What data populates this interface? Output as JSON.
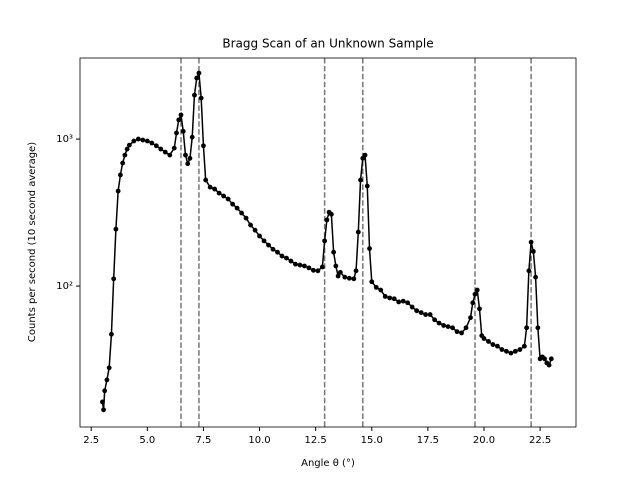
{
  "chart_data": {
    "type": "line",
    "title": "Bragg Scan of an Unknown Sample",
    "xlabel": "Angle θ (°)",
    "ylabel": "Counts per second (10 second average)",
    "yscale": "log",
    "xlim": [
      2,
      24.1
    ],
    "ylim": [
      11,
      3560
    ],
    "xticks": [
      {
        "value": 2.5,
        "label": "2.5"
      },
      {
        "value": 5,
        "label": "5.0"
      },
      {
        "value": 7.5,
        "label": "7.5"
      },
      {
        "value": 10,
        "label": "10.0"
      },
      {
        "value": 12.5,
        "label": "12.5"
      },
      {
        "value": 15,
        "label": "15.0"
      },
      {
        "value": 17.5,
        "label": "17.5"
      },
      {
        "value": 20,
        "label": "20.0"
      },
      {
        "value": 22.5,
        "label": "22.5"
      }
    ],
    "yticks": [
      {
        "value": 100,
        "label": "10²"
      },
      {
        "value": 1000,
        "label": "10³"
      }
    ],
    "vlines": [
      6.5,
      7.3,
      12.9,
      14.6,
      19.6,
      22.1
    ],
    "vline_color": "#777777",
    "series": [
      {
        "color": "#000000",
        "x": [
          3.0,
          3.05,
          3.1,
          3.2,
          3.3,
          3.4,
          3.5,
          3.6,
          3.7,
          3.8,
          3.9,
          4.0,
          4.1,
          4.2,
          4.4,
          4.6,
          4.8,
          5.0,
          5.2,
          5.4,
          5.6,
          5.8,
          6.0,
          6.2,
          6.3,
          6.4,
          6.5,
          6.6,
          6.7,
          6.8,
          6.9,
          7.0,
          7.1,
          7.2,
          7.3,
          7.4,
          7.5,
          7.6,
          7.8,
          8.0,
          8.2,
          8.4,
          8.6,
          8.8,
          9.0,
          9.2,
          9.4,
          9.6,
          9.8,
          10.0,
          10.2,
          10.4,
          10.6,
          10.8,
          11.0,
          11.2,
          11.4,
          11.6,
          11.8,
          12.0,
          12.2,
          12.4,
          12.6,
          12.8,
          12.9,
          13.0,
          13.1,
          13.2,
          13.3,
          13.4,
          13.5,
          13.6,
          13.8,
          14.0,
          14.2,
          14.3,
          14.4,
          14.5,
          14.6,
          14.7,
          14.8,
          14.9,
          15.0,
          15.2,
          15.4,
          15.6,
          15.8,
          16.0,
          16.2,
          16.4,
          16.6,
          16.8,
          17.0,
          17.2,
          17.4,
          17.6,
          17.8,
          18.0,
          18.2,
          18.4,
          18.6,
          18.8,
          19.0,
          19.2,
          19.4,
          19.5,
          19.6,
          19.7,
          19.8,
          19.9,
          20.0,
          20.2,
          20.4,
          20.6,
          20.8,
          21.0,
          21.2,
          21.4,
          21.6,
          21.8,
          21.9,
          22.0,
          22.1,
          22.2,
          22.3,
          22.4,
          22.5,
          22.6,
          22.7,
          22.8,
          22.9,
          23.0
        ],
        "values": [
          16.3,
          14.4,
          19.4,
          23,
          27.8,
          47,
          112,
          244,
          443,
          570,
          687,
          778,
          855,
          910,
          970,
          1000,
          985,
          970,
          940,
          900,
          855,
          815,
          778,
          868,
          1100,
          1350,
          1460,
          1130,
          778,
          680,
          740,
          1030,
          1990,
          2600,
          2810,
          1900,
          900,
          526,
          471,
          457,
          429,
          410,
          391,
          361,
          339,
          314,
          290,
          260,
          240,
          219,
          203,
          190,
          178,
          170,
          160,
          155,
          148,
          141,
          139,
          137,
          133,
          128,
          127,
          135,
          203,
          282,
          318,
          308,
          170,
          137,
          117,
          124,
          115,
          113,
          112,
          127,
          233,
          526,
          740,
          778,
          479,
          180,
          107,
          98,
          94,
          85,
          83,
          82,
          78,
          79,
          77,
          72,
          68,
          66,
          64,
          64,
          59,
          56,
          54,
          53,
          52,
          49,
          48,
          52,
          61,
          77,
          88,
          94,
          70,
          46,
          44,
          42,
          40,
          39,
          37,
          36,
          35,
          36,
          37,
          39,
          52,
          127,
          199,
          172,
          115,
          52,
          32,
          33,
          32,
          30,
          29,
          32
        ]
      }
    ]
  }
}
